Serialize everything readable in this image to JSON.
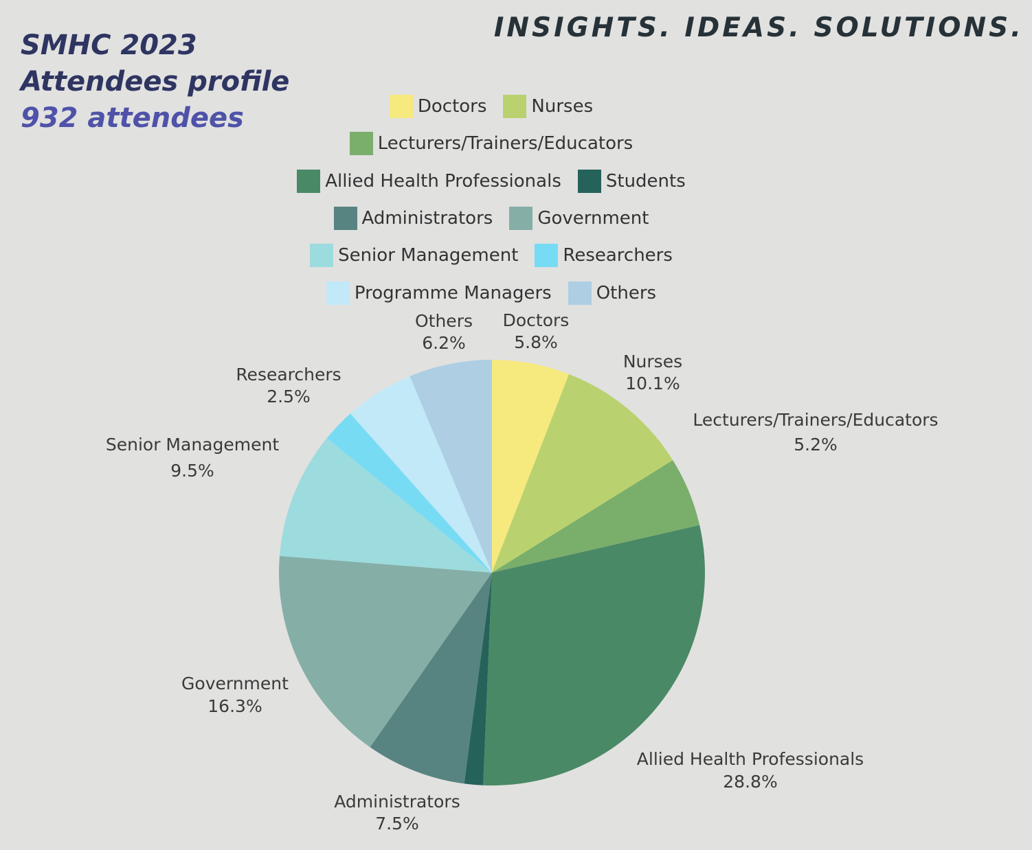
{
  "header": {
    "tagline": "INSIGHTS. IDEAS. SOLUTIONS.",
    "title_line1": "SMHC 2023",
    "title_line2": "Attendees profile",
    "title_line3": "932 attendees"
  },
  "chart_data": {
    "type": "pie",
    "title": "SMHC 2023 Attendees profile",
    "legend_position": "top",
    "slices": [
      {
        "name": "Doctors",
        "value": 5.8,
        "label": "5.8%",
        "color": "#f6e97d"
      },
      {
        "name": "Nurses",
        "value": 10.1,
        "label": "10.1%",
        "color": "#b9d26f"
      },
      {
        "name": "Lecturers/Trainers/Educators",
        "value": 5.2,
        "label": "5.2%",
        "color": "#7aae6b"
      },
      {
        "name": "Allied Health Professionals",
        "value": 28.8,
        "label": "28.8%",
        "color": "#4a8966"
      },
      {
        "name": "Students",
        "value": 1.4,
        "label": "",
        "color": "#25625a"
      },
      {
        "name": "Administrators",
        "value": 7.5,
        "label": "7.5%",
        "color": "#578480"
      },
      {
        "name": "Government",
        "value": 16.3,
        "label": "16.3%",
        "color": "#85aea6"
      },
      {
        "name": "Senior Management",
        "value": 9.5,
        "label": "9.5%",
        "color": "#9cdbde"
      },
      {
        "name": "Researchers",
        "value": 2.5,
        "label": "2.5%",
        "color": "#78dbf4"
      },
      {
        "name": "Programme Managers",
        "value": 5.2,
        "label": "",
        "color": "#c1e9f8"
      },
      {
        "name": "Others",
        "value": 6.2,
        "label": "6.2%",
        "color": "#aecee3"
      }
    ],
    "legend_rows": [
      [
        "Doctors",
        "Nurses"
      ],
      [
        "Lecturers/Trainers/Educators"
      ],
      [
        "Allied Health Professionals",
        "Students"
      ],
      [
        "Administrators",
        "Government"
      ],
      [
        "Senior Management",
        "Researchers"
      ],
      [
        "Programme Managers",
        "Others"
      ]
    ]
  }
}
